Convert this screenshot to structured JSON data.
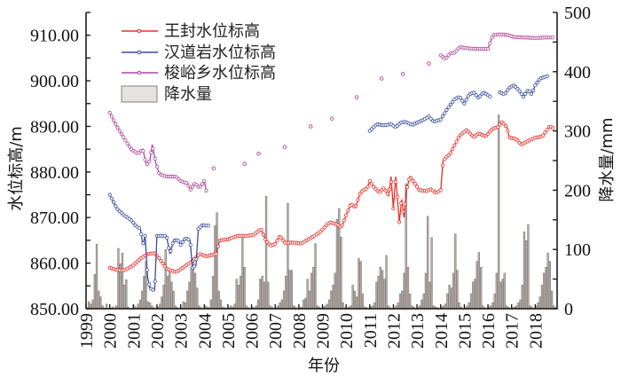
{
  "chart_data": {
    "type": "line",
    "title": "",
    "xlabel": "年份",
    "ylabel": "水位标高/m",
    "y2label": "降水量/mm",
    "xlim": [
      1999,
      2019
    ],
    "ylim": [
      850,
      915
    ],
    "y2lim": [
      0,
      500
    ],
    "x_ticks": [
      "1999",
      "2000",
      "2001",
      "2002",
      "2003",
      "2004",
      "2005",
      "2006",
      "2007",
      "2008",
      "2009",
      "2010",
      "2011",
      "2012",
      "2013",
      "2014",
      "2015",
      "2016",
      "2017",
      "2018"
    ],
    "y_ticks": [
      "850.00",
      "860.00",
      "870.00",
      "880.00",
      "890.00",
      "900.00",
      "910.00"
    ],
    "y2_ticks": [
      "0",
      "100",
      "200",
      "300",
      "400",
      "500"
    ],
    "legend_position": "top-left",
    "colors": {
      "wangfeng": "#e8302a",
      "handaoyan": "#3b4c9c",
      "suoyu": "#b0469e",
      "bar_fill": "#b3aca7",
      "bar_stroke": "#6e6560"
    },
    "series": [
      {
        "name": "王封水位标高",
        "key": "wangfeng",
        "segments": [
          [
            [
              2000.0,
              859
            ],
            [
              2000.3,
              858.5
            ],
            [
              2000.6,
              858.4
            ],
            [
              2001.0,
              859.5
            ],
            [
              2001.3,
              861
            ],
            [
              2001.6,
              862
            ],
            [
              2001.9,
              862.2
            ],
            [
              2002.1,
              861
            ],
            [
              2002.4,
              858.8
            ],
            [
              2002.8,
              858
            ],
            [
              2003.1,
              859
            ],
            [
              2003.5,
              860.5
            ],
            [
              2003.8,
              862
            ],
            [
              2004.1,
              861.5
            ],
            [
              2004.5,
              862
            ],
            [
              2004.65,
              865
            ],
            [
              2005.0,
              865.2
            ],
            [
              2005.4,
              866
            ],
            [
              2005.8,
              866
            ],
            [
              2006.1,
              866.2
            ],
            [
              2006.4,
              867.5
            ],
            [
              2006.6,
              865
            ],
            [
              2006.8,
              863.8
            ],
            [
              2007.0,
              864.2
            ],
            [
              2007.2,
              866
            ],
            [
              2007.4,
              864.5
            ],
            [
              2007.8,
              864.5
            ],
            [
              2008.1,
              864.3
            ],
            [
              2008.5,
              865.5
            ],
            [
              2008.9,
              866.8
            ],
            [
              2009.3,
              869
            ],
            [
              2009.6,
              868.5
            ],
            [
              2009.8,
              867.8
            ],
            [
              2010.0,
              870.5
            ],
            [
              2010.2,
              873
            ],
            [
              2010.4,
              872.2
            ],
            [
              2010.6,
              875.5
            ],
            [
              2010.9,
              876.5
            ],
            [
              2011.0,
              878
            ],
            [
              2011.2,
              876.5
            ],
            [
              2011.4,
              875.5
            ],
            [
              2011.6,
              876.5
            ],
            [
              2011.8,
              874.8
            ],
            [
              2011.9,
              879
            ],
            [
              2012.0,
              872
            ],
            [
              2012.1,
              879
            ],
            [
              2012.25,
              869
            ],
            [
              2012.35,
              874
            ],
            [
              2012.45,
              870
            ],
            [
              2012.55,
              876
            ],
            [
              2012.7,
              879
            ],
            [
              2012.9,
              877.5
            ],
            [
              2013.1,
              876
            ],
            [
              2013.4,
              875.8
            ],
            [
              2013.6,
              876.2
            ],
            [
              2013.8,
              875.4
            ],
            [
              2014.0,
              876
            ],
            [
              2014.1,
              882.5
            ],
            [
              2014.4,
              884
            ],
            [
              2014.6,
              886
            ],
            [
              2014.8,
              888
            ],
            [
              2015.1,
              889.2
            ],
            [
              2015.4,
              887.6
            ],
            [
              2015.6,
              888.5
            ],
            [
              2015.9,
              887.8
            ],
            [
              2016.2,
              889.5
            ],
            [
              2016.4,
              889.8
            ],
            [
              2016.6,
              891
            ],
            [
              2016.8,
              889.8
            ],
            [
              2016.9,
              887.6
            ],
            [
              2017.2,
              887.2
            ],
            [
              2017.4,
              886
            ],
            [
              2017.7,
              886.8
            ],
            [
              2018.0,
              887.5
            ],
            [
              2018.3,
              887.8
            ],
            [
              2018.6,
              890
            ],
            [
              2018.8,
              889.5
            ]
          ]
        ]
      },
      {
        "name": "汉道岩水位标高",
        "key": "handaoyan",
        "segments": [
          [
            [
              2000.0,
              875
            ],
            [
              2000.3,
              872
            ],
            [
              2000.6,
              870.5
            ],
            [
              2000.9,
              869.5
            ],
            [
              2001.1,
              868.2
            ],
            [
              2001.3,
              867.5
            ],
            [
              2001.4,
              864
            ],
            [
              2001.5,
              866
            ],
            [
              2001.6,
              857
            ],
            [
              2001.7,
              854.5
            ],
            [
              2001.9,
              854
            ],
            [
              2002.0,
              866
            ],
            [
              2002.4,
              866
            ],
            [
              2002.55,
              862
            ],
            [
              2002.7,
              865
            ],
            [
              2002.9,
              865
            ],
            [
              2003.0,
              864
            ],
            [
              2003.2,
              865.5
            ],
            [
              2003.4,
              865
            ],
            [
              2003.5,
              859
            ],
            [
              2003.65,
              859.5
            ],
            [
              2003.75,
              867.5
            ],
            [
              2003.9,
              868.3
            ],
            [
              2004.2,
              868.2
            ]
          ],
          [
            [
              2011.0,
              889
            ],
            [
              2011.3,
              890.5
            ],
            [
              2011.6,
              890.2
            ],
            [
              2011.9,
              890.5
            ],
            [
              2012.1,
              889.8
            ],
            [
              2012.3,
              890.8
            ],
            [
              2012.5,
              891
            ],
            [
              2012.8,
              890.3
            ],
            [
              2013.0,
              890.8
            ],
            [
              2013.3,
              891.5
            ],
            [
              2013.5,
              892.2
            ],
            [
              2013.7,
              891
            ],
            [
              2014.0,
              891.5
            ],
            [
              2014.3,
              894
            ],
            [
              2014.6,
              896
            ],
            [
              2014.8,
              896.5
            ],
            [
              2015.0,
              895
            ],
            [
              2015.2,
              897
            ],
            [
              2015.4,
              897.5
            ],
            [
              2015.6,
              896.2
            ],
            [
              2015.8,
              897.5
            ],
            [
              2016.1,
              896.5
            ]
          ],
          [
            [
              2016.5,
              897.5
            ],
            [
              2016.7,
              897
            ],
            [
              2016.9,
              898.5
            ],
            [
              2017.1,
              899
            ],
            [
              2017.3,
              898
            ],
            [
              2017.5,
              896.5
            ],
            [
              2017.7,
              898
            ],
            [
              2017.85,
              897
            ],
            [
              2018.0,
              899
            ],
            [
              2018.2,
              900.5
            ],
            [
              2018.5,
              901
            ]
          ]
        ]
      },
      {
        "name": "梭峪乡水位标高",
        "key": "suoyu",
        "segments": [
          [
            [
              2000.0,
              893
            ],
            [
              2000.3,
              890
            ],
            [
              2000.6,
              887.5
            ],
            [
              2000.9,
              885
            ],
            [
              2001.2,
              884
            ],
            [
              2001.4,
              885
            ],
            [
              2001.55,
              881.5
            ],
            [
              2001.7,
              882.5
            ],
            [
              2001.8,
              886
            ],
            [
              2001.95,
              882
            ],
            [
              2002.1,
              879.5
            ],
            [
              2002.4,
              879
            ],
            [
              2002.8,
              879
            ],
            [
              2003.0,
              878
            ],
            [
              2003.3,
              877.5
            ],
            [
              2003.4,
              876
            ],
            [
              2003.6,
              877.5
            ],
            [
              2003.8,
              876.5
            ],
            [
              2004.0,
              878
            ],
            [
              2004.1,
              875.5
            ]
          ],
          [
            [
              2004.4,
              880.8
            ]
          ],
          [
            [
              2005.7,
              881.8
            ]
          ],
          [
            [
              2006.3,
              884
            ]
          ],
          [
            [
              2007.4,
              885.5
            ]
          ],
          [
            [
              2008.5,
              890
            ]
          ],
          [
            [
              2009.4,
              891.7
            ]
          ],
          [
            [
              2010.45,
              896.4
            ]
          ],
          [
            [
              2011.5,
              900.5
            ]
          ],
          [
            [
              2012.4,
              901.5
            ]
          ],
          [
            [
              2013.5,
              903.8
            ]
          ],
          [
            [
              2014.0,
              905.6
            ],
            [
              2014.2,
              904.8
            ],
            [
              2014.4,
              906
            ],
            [
              2014.6,
              906.2
            ],
            [
              2014.8,
              907.4
            ],
            [
              2015.2,
              907.1
            ],
            [
              2015.6,
              907
            ],
            [
              2016.0,
              907
            ],
            [
              2016.2,
              910
            ],
            [
              2016.5,
              910.2
            ],
            [
              2016.8,
              910.1
            ],
            [
              2017.1,
              909.6
            ],
            [
              2017.5,
              909.5
            ],
            [
              2018.0,
              909.4
            ],
            [
              2018.5,
              909.5
            ],
            [
              2018.8,
              909.5
            ]
          ]
        ]
      }
    ],
    "precipitation": {
      "name": "降水量",
      "start_year": 1999,
      "monthly_mm": [
        [
          2,
          12,
          8,
          15,
          58,
          109,
          30,
          20,
          5,
          1,
          8,
          0
        ],
        [
          1,
          3,
          2,
          5,
          102,
          76,
          94,
          40,
          49,
          3,
          0,
          1
        ],
        [
          5,
          2,
          8,
          15,
          30,
          55,
          80,
          12,
          10,
          5,
          2,
          0
        ],
        [
          3,
          8,
          20,
          40,
          100,
          55,
          65,
          45,
          30,
          5,
          2,
          0
        ],
        [
          2,
          12,
          10,
          30,
          45,
          70,
          85,
          60,
          35,
          5,
          2,
          0
        ],
        [
          5,
          3,
          2,
          15,
          55,
          140,
          162,
          30,
          15,
          3,
          2,
          0
        ],
        [
          2,
          5,
          3,
          8,
          50,
          40,
          55,
          120,
          70,
          5,
          2,
          0
        ],
        [
          3,
          2,
          5,
          15,
          50,
          55,
          45,
          190,
          45,
          5,
          3,
          0
        ],
        [
          2,
          5,
          10,
          15,
          30,
          55,
          178,
          65,
          65,
          5,
          3,
          0
        ],
        [
          2,
          3,
          15,
          18,
          50,
          30,
          60,
          70,
          110,
          5,
          3,
          0
        ],
        [
          3,
          5,
          8,
          15,
          30,
          40,
          60,
          151,
          169,
          121,
          10,
          2
        ],
        [
          2,
          3,
          5,
          40,
          30,
          20,
          85,
          80,
          25,
          3,
          2,
          0
        ],
        [
          3,
          5,
          10,
          45,
          55,
          70,
          65,
          50,
          90,
          5,
          2,
          0
        ],
        [
          2,
          5,
          10,
          25,
          30,
          60,
          211,
          70,
          25,
          5,
          3,
          0
        ],
        [
          2,
          5,
          15,
          25,
          60,
          156,
          45,
          120,
          5,
          3,
          2,
          0
        ],
        [
          3,
          5,
          8,
          25,
          40,
          35,
          60,
          126,
          65,
          10,
          3,
          0
        ],
        [
          2,
          5,
          10,
          25,
          45,
          50,
          80,
          95,
          70,
          5,
          2,
          0
        ],
        [
          3,
          5,
          10,
          25,
          60,
          327,
          45,
          50,
          60,
          5,
          3,
          0
        ],
        [
          2,
          3,
          5,
          10,
          15,
          40,
          130,
          115,
          142,
          5,
          3,
          0
        ],
        [
          5,
          10,
          20,
          40,
          60,
          70,
          94,
          80,
          30,
          5,
          2,
          0
        ]
      ]
    }
  }
}
